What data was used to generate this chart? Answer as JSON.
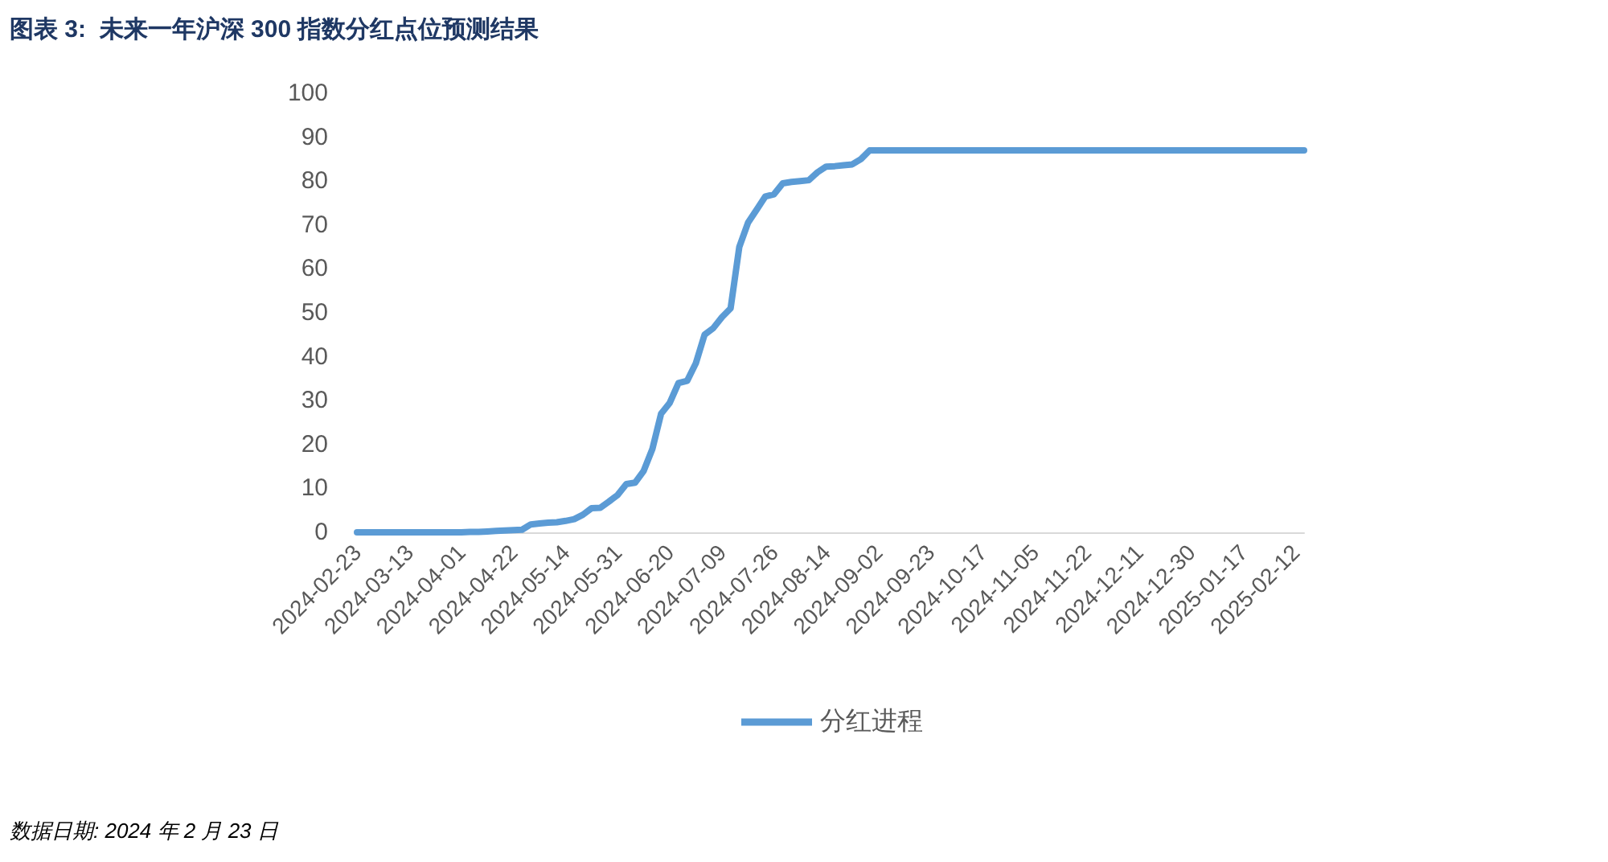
{
  "chart_data": {
    "type": "line",
    "title": "图表 3:  未来一年沪深 300 指数分红点位预测结果",
    "annotations": [
      "数据日期: 2024 年 2 月 23 日"
    ],
    "categories": [
      "2024-02-23",
      null,
      null,
      null,
      null,
      null,
      "2024-03-13",
      null,
      null,
      null,
      null,
      null,
      "2024-04-01",
      null,
      null,
      null,
      null,
      null,
      "2024-04-22",
      null,
      null,
      null,
      null,
      null,
      "2024-05-14",
      null,
      null,
      null,
      null,
      null,
      "2024-05-31",
      null,
      null,
      null,
      null,
      null,
      "2024-06-20",
      null,
      null,
      null,
      null,
      null,
      "2024-07-09",
      null,
      null,
      null,
      null,
      null,
      "2024-07-26",
      null,
      null,
      null,
      null,
      null,
      "2024-08-14",
      null,
      null,
      null,
      null,
      null,
      "2024-09-02",
      null,
      null,
      null,
      null,
      null,
      "2024-09-23",
      null,
      null,
      null,
      null,
      null,
      "2024-10-17",
      null,
      null,
      null,
      null,
      null,
      "2024-11-05",
      null,
      null,
      null,
      null,
      null,
      "2024-11-22",
      null,
      null,
      null,
      null,
      null,
      "2024-12-11",
      null,
      null,
      null,
      null,
      null,
      "2024-12-30",
      null,
      null,
      null,
      null,
      null,
      "2025-01-17",
      null,
      null,
      null,
      null,
      null,
      "2025-02-12",
      null
    ],
    "series": [
      {
        "name": "分红进程",
        "color": "#5b9bd5",
        "values": [
          0,
          0,
          0,
          0,
          0,
          0,
          0,
          0,
          0,
          0,
          0,
          0,
          0,
          0.1,
          0.1,
          0.2,
          0.3,
          0.4,
          0.5,
          0.6,
          1.8,
          2.0,
          2.2,
          2.3,
          2.6,
          3.0,
          4.0,
          5.5,
          5.6,
          7,
          8.5,
          11,
          11.3,
          14,
          19,
          27,
          29.5,
          34,
          34.5,
          38.5,
          45,
          46.5,
          49,
          51,
          65,
          70.5,
          73.5,
          76.5,
          77,
          79.5,
          79.8,
          80,
          80.2,
          82,
          83.3,
          83.4,
          83.6,
          83.8,
          85,
          87,
          87,
          87,
          87,
          87,
          87,
          87,
          87,
          87,
          87,
          87,
          87,
          87,
          87,
          87,
          87,
          87,
          87,
          87,
          87,
          87,
          87,
          87,
          87,
          87,
          87,
          87,
          87,
          87,
          87,
          87,
          87,
          87,
          87,
          87,
          87,
          87,
          87,
          87,
          87,
          87,
          87,
          87,
          87,
          87,
          87,
          87,
          87,
          87,
          87,
          87
        ]
      }
    ],
    "ylim": [
      0,
      100
    ],
    "yticks": [
      0,
      10,
      20,
      30,
      40,
      50,
      60,
      70,
      80,
      90,
      100
    ],
    "grid": false,
    "legend": "bottom",
    "marker": "none",
    "line_style": "solid"
  }
}
